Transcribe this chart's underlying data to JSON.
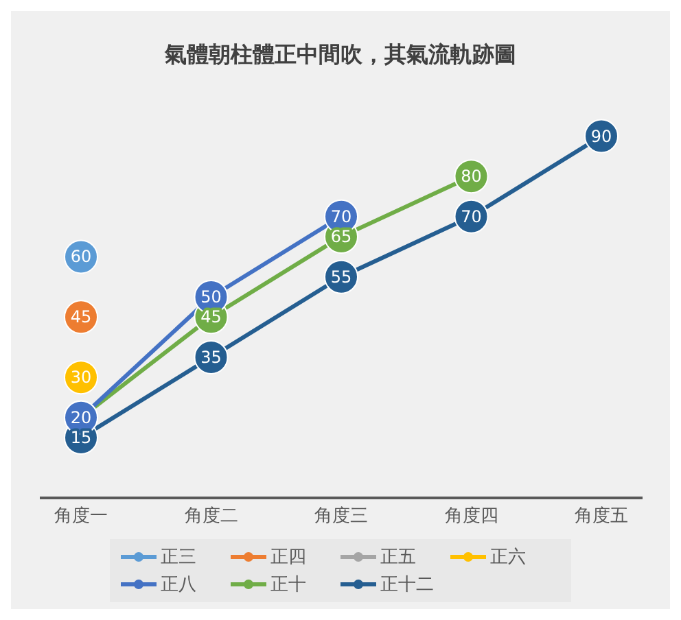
{
  "chart_data": {
    "type": "line",
    "title": "氣體朝柱體正中間吹，其氣流軌跡圖",
    "categories": [
      "角度一",
      "角度二",
      "角度三",
      "角度四",
      "角度五"
    ],
    "series": [
      {
        "name": "正三",
        "color": "#5b9bd5",
        "values": [
          60,
          null,
          null,
          null,
          null
        ],
        "value_labels": [
          "60",
          null,
          null,
          null,
          null
        ]
      },
      {
        "name": "正四",
        "color": "#ed7d31",
        "values": [
          45,
          null,
          null,
          null,
          null
        ],
        "value_labels": [
          "45",
          null,
          null,
          null,
          null
        ]
      },
      {
        "name": "正五",
        "color": "#a5a5a5",
        "values": [
          null,
          null,
          null,
          null,
          null
        ]
      },
      {
        "name": "正六",
        "color": "#ffc000",
        "values": [
          30,
          null,
          null,
          null,
          null
        ],
        "value_labels": [
          "30",
          null,
          null,
          null,
          null
        ]
      },
      {
        "name": "正八",
        "color": "#4472c4",
        "values": [
          20,
          50,
          70,
          null,
          null
        ],
        "value_labels": [
          "20",
          "50",
          "70",
          null,
          null
        ]
      },
      {
        "name": "正十",
        "color": "#70ad47",
        "values": [
          20,
          45,
          65,
          80,
          null
        ],
        "value_labels": [
          null,
          "45",
          "65",
          "80",
          null
        ]
      },
      {
        "name": "正十二",
        "color": "#255e91",
        "values": [
          15,
          35,
          55,
          70,
          90
        ],
        "value_labels": [
          "15",
          "35",
          "55",
          "70",
          "90"
        ]
      }
    ],
    "tick_labels": "x",
    "legend": "bottom",
    "marker": "circle",
    "line_style": "solid"
  }
}
